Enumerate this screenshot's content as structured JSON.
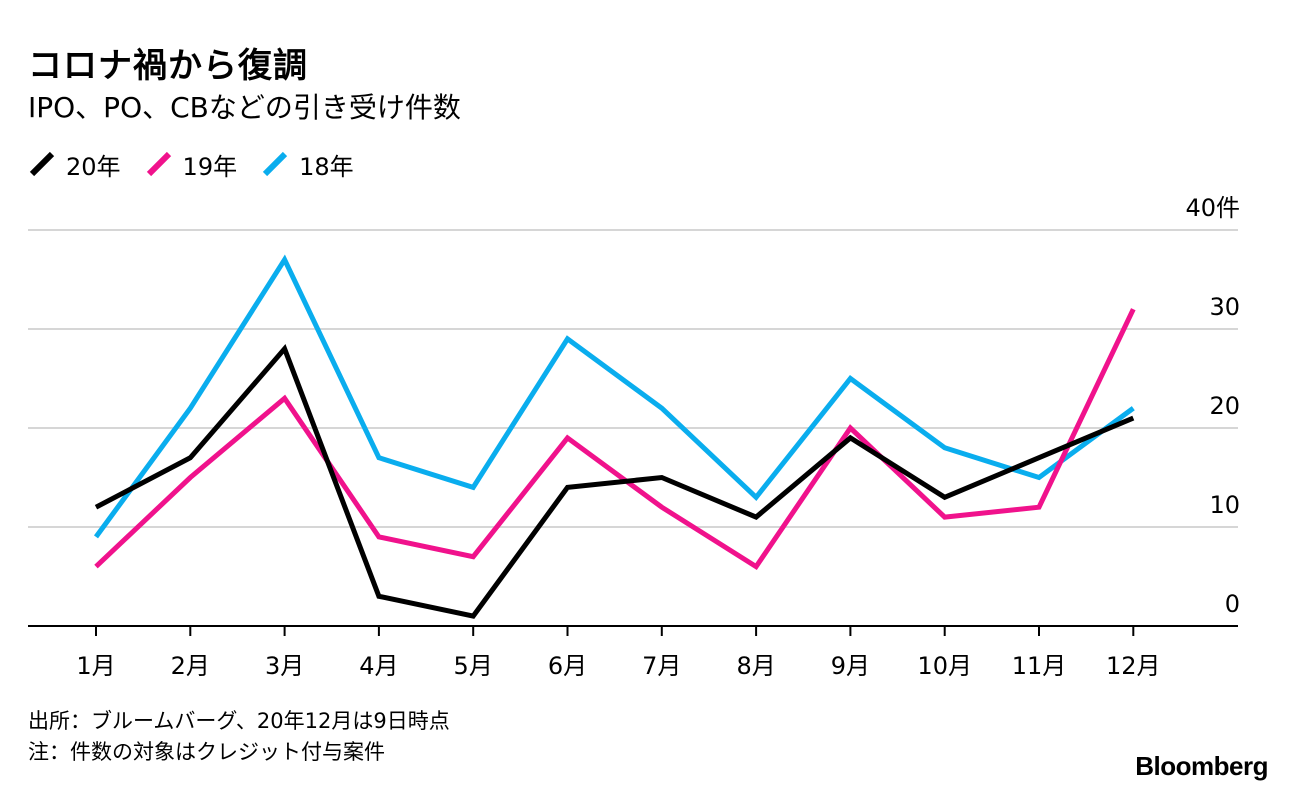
{
  "chart_data": {
    "type": "line",
    "title": "コロナ禍から復調",
    "subtitle": "IPO、PO、CBなどの引き受け件数",
    "categories": [
      "1月",
      "2月",
      "3月",
      "4月",
      "5月",
      "6月",
      "7月",
      "8月",
      "9月",
      "10月",
      "11月",
      "12月"
    ],
    "series": [
      {
        "name": "20年",
        "color": "#000000",
        "values": [
          12,
          17,
          28,
          3,
          1,
          14,
          15,
          11,
          19,
          13,
          17,
          21
        ]
      },
      {
        "name": "19年",
        "color": "#f0128c",
        "values": [
          6,
          15,
          23,
          9,
          7,
          19,
          12,
          6,
          20,
          11,
          12,
          32
        ]
      },
      {
        "name": "18年",
        "color": "#0aadee",
        "values": [
          9,
          22,
          37,
          17,
          14,
          29,
          22,
          13,
          25,
          18,
          15,
          22
        ]
      }
    ],
    "ylim": [
      0,
      40
    ],
    "yticks": [
      0,
      10,
      20,
      30,
      40
    ],
    "ytick_labels": [
      "0",
      "10",
      "20",
      "30",
      "40件"
    ],
    "xlabel": "",
    "ylabel": "件",
    "grid": true,
    "legend_position": "top-left"
  },
  "footer": {
    "source": "出所：ブルームバーグ、20年12月は9日時点",
    "note": "注：件数の対象はクレジット付与案件"
  },
  "brand": "Bloomberg"
}
